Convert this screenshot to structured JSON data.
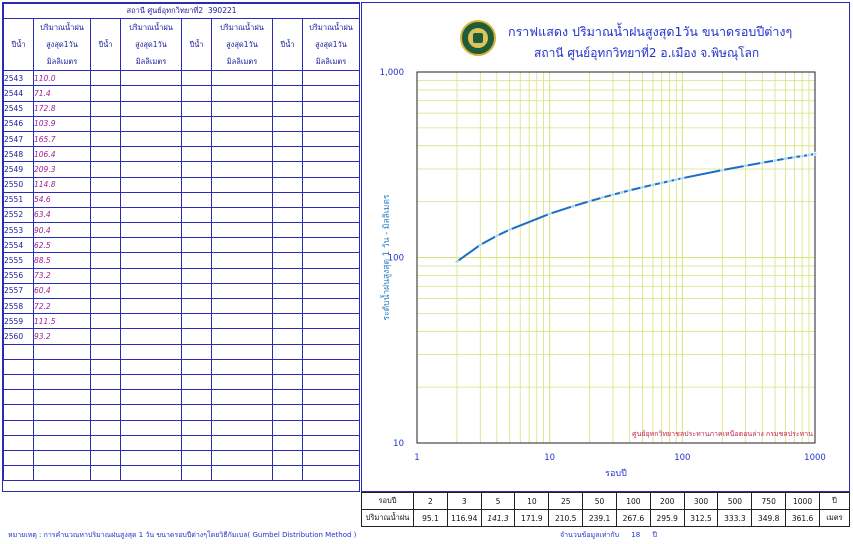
{
  "station_header": {
    "station": "สถานี ศูนย์อุทกวิทยาที่2",
    "code": "390221"
  },
  "table_headers": {
    "year": "ปีน้ำ",
    "rain_l1": "ปริมาณน้ำฝน",
    "rain_l2": "สูงสุด1วัน",
    "rain_l3": "มิลลิเมตร"
  },
  "yearly_max_rain": [
    {
      "year": "2543",
      "value": "110.0"
    },
    {
      "year": "2544",
      "value": "71.4"
    },
    {
      "year": "2545",
      "value": "172.8"
    },
    {
      "year": "2546",
      "value": "103.9"
    },
    {
      "year": "2547",
      "value": "165.7"
    },
    {
      "year": "2548",
      "value": "106.4"
    },
    {
      "year": "2549",
      "value": "209.3"
    },
    {
      "year": "2550",
      "value": "114.8"
    },
    {
      "year": "2551",
      "value": "54.6"
    },
    {
      "year": "2552",
      "value": "63.4"
    },
    {
      "year": "2553",
      "value": "90.4"
    },
    {
      "year": "2554",
      "value": "62.5"
    },
    {
      "year": "2555",
      "value": "88.5"
    },
    {
      "year": "2556",
      "value": "73.2"
    },
    {
      "year": "2557",
      "value": "60.4"
    },
    {
      "year": "2558",
      "value": "72.2"
    },
    {
      "year": "2559",
      "value": "111.5"
    },
    {
      "year": "2560",
      "value": "93.2"
    }
  ],
  "chart_data": {
    "type": "line",
    "title": "กราฟแสดง ปริมาณน้ำฝนสูงสุด1วัน ขนาดรอบปีต่างๆ",
    "subtitle": "สถานี ศูนย์อุทกวิทยาที่2    อ.เมือง  จ.พิษณุโลก",
    "xlabel": "รอบปี",
    "ylabel": "ระดับน้ำฝนสูงสุด 1 วัน  -  มิลลิเมตร",
    "x_scale": "log",
    "y_scale": "log",
    "xlim": [
      1,
      1000
    ],
    "ylim": [
      10,
      1000
    ],
    "x_ticks": [
      "1",
      "10",
      "100",
      "1000"
    ],
    "y_ticks": [
      "10",
      "100",
      "1,000"
    ],
    "grid": true,
    "annotation": "ศูนย์อุทกวิทยาชลประทานภาคเหนือตอนล่าง  กรมชลประทาน",
    "x": [
      2,
      3,
      4,
      5,
      10,
      15,
      20,
      25,
      30,
      35,
      40,
      50,
      60,
      70,
      80,
      90,
      100,
      200,
      300,
      400,
      500,
      600,
      700,
      800,
      900,
      1000
    ],
    "y": [
      95.1,
      116.94,
      131.0,
      141.3,
      171.9,
      189.0,
      201.0,
      210.5,
      218.0,
      224.5,
      230.0,
      239.1,
      246.5,
      252.5,
      258.0,
      263.0,
      267.6,
      295.9,
      312.5,
      324.0,
      333.3,
      341.0,
      347.4,
      352.0,
      357.0,
      361.6
    ],
    "line_color": "#1a6fc4",
    "grid_color": "#d8e27a",
    "marker_color": "#a8d4f2"
  },
  "return_period_table": {
    "row1_label": "รอบปี",
    "row2_label": "ปริมาณน้ำฝน",
    "periods": [
      "2",
      "3",
      "5",
      "10",
      "25",
      "50",
      "100",
      "200",
      "300",
      "500",
      "750",
      "1000"
    ],
    "values": [
      "95.1",
      "116.94",
      "141.3",
      "171.9",
      "210.5",
      "239.1",
      "267.6",
      "295.9",
      "312.5",
      "333.3",
      "349.8",
      "361.6"
    ],
    "unit_row1": "ปี",
    "unit_row2": "เมตร"
  },
  "footnote": "หมายเหตุ : การคำนวณหาปริมาณฝนสูงสุด 1 วัน ขนาดรอบปีต่างๆโดยวิธีกัมเบล( Gumbel Distribution Method )",
  "record_count": {
    "label": "จำนวนข้อมูลเท่ากับ",
    "value": "18",
    "unit": "ปี"
  }
}
